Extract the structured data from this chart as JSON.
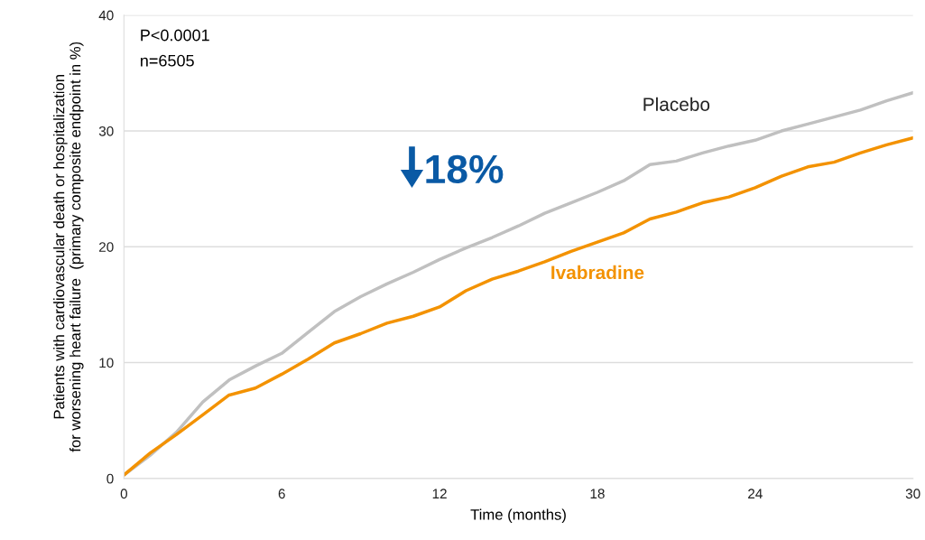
{
  "chart_data": {
    "type": "line",
    "xlabel": "Time (months)",
    "ylabel": "Patients with cardiovascular death or hospitalization\nfor worsening heart failure  (primary composite endpoint in %)",
    "x": [
      0,
      1,
      2,
      3,
      4,
      5,
      6,
      7,
      8,
      9,
      10,
      11,
      12,
      13,
      14,
      15,
      16,
      17,
      18,
      19,
      20,
      21,
      22,
      23,
      24,
      25,
      26,
      27,
      28,
      29,
      30
    ],
    "series": [
      {
        "name": "Placebo",
        "color": "#c0c0c0",
        "values": [
          0.3,
          2.0,
          4.0,
          6.6,
          8.5,
          9.7,
          10.8,
          12.6,
          14.4,
          15.7,
          16.8,
          17.8,
          18.9,
          19.9,
          20.8,
          21.8,
          22.9,
          23.8,
          24.7,
          25.7,
          27.1,
          27.4,
          28.1,
          28.7,
          29.2,
          30.0,
          30.6,
          31.2,
          31.8,
          32.6,
          33.3
        ]
      },
      {
        "name": "Ivabradine",
        "color": "#f39200",
        "values": [
          0.3,
          2.2,
          3.8,
          5.5,
          7.2,
          7.8,
          9.0,
          10.3,
          11.7,
          12.5,
          13.4,
          14.0,
          14.8,
          16.2,
          17.2,
          17.9,
          18.7,
          19.6,
          20.4,
          21.2,
          22.4,
          23.0,
          23.8,
          24.3,
          25.1,
          26.1,
          26.9,
          27.3,
          28.1,
          28.8,
          29.4
        ]
      }
    ],
    "annotations": [
      "P<0.0001",
      "n=6505",
      "18%"
    ],
    "xlim": [
      0,
      30
    ],
    "xticks": [
      0,
      6,
      12,
      18,
      24,
      30
    ],
    "ylim": [
      0,
      40
    ],
    "yticks": [
      0,
      10,
      20,
      30,
      40
    ],
    "grid": "y",
    "marker": "none",
    "line_style": "solid",
    "legend": false
  }
}
